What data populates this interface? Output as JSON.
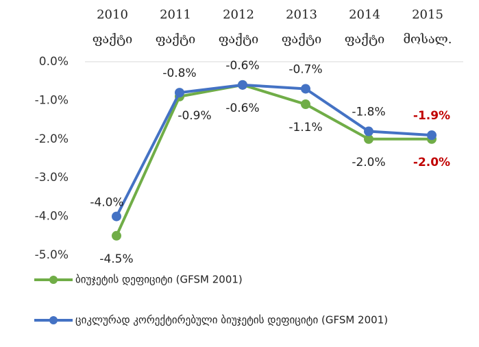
{
  "chart_data": {
    "type": "line",
    "categories": [
      [
        "2010",
        "ფაქტი"
      ],
      [
        "2011",
        "ფაქტი"
      ],
      [
        "2012",
        "ფაქტი"
      ],
      [
        "2013",
        "ფაქტი"
      ],
      [
        "2014",
        "ფაქტი"
      ],
      [
        "2015",
        "მოსალ."
      ]
    ],
    "series": [
      {
        "name": "ბიუჯეტის დეფიციტი (GFSM 2001)",
        "color": "#70ad47",
        "values": [
          -4.5,
          -0.9,
          -0.6,
          -1.1,
          -2.0,
          -2.0
        ],
        "value_labels": [
          "-4.5%",
          "-0.9%",
          "-0.6%",
          "-1.1%",
          "-2.0%",
          "-2.0%"
        ]
      },
      {
        "name": "ციკლურად კორექტირებული ბიუჯეტის დეფიციტი (GFSM 2001)",
        "color": "#4472c4",
        "values": [
          -4.0,
          -0.8,
          -0.6,
          -0.7,
          -1.8,
          -1.9
        ],
        "value_labels": [
          "-4.0%",
          "-0.8%",
          "-0.6%",
          "-0.7%",
          "-1.8%",
          "-1.9%"
        ]
      }
    ],
    "ylim": [
      -5,
      0
    ],
    "yticks": [
      {
        "value": 0,
        "label": "0.0%"
      },
      {
        "value": -1,
        "label": "-1.0%"
      },
      {
        "value": -2,
        "label": "-2.0%"
      },
      {
        "value": -3,
        "label": "-3.0%"
      },
      {
        "value": -4,
        "label": "-4.0%"
      },
      {
        "value": -5,
        "label": "-5.0%"
      }
    ],
    "legend": "bottom"
  }
}
